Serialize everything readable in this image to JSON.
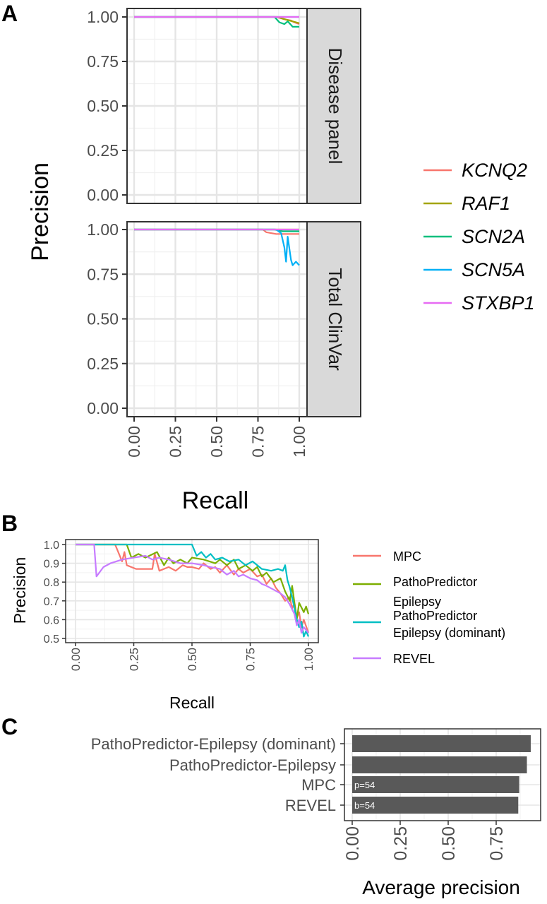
{
  "panel_labels": {
    "a": "A",
    "b": "B",
    "c": "C"
  },
  "chart_data": [
    {
      "panel": "A",
      "type": "line",
      "xlabel": "Recall",
      "ylabel": "Precision",
      "xlim": [
        0,
        1
      ],
      "ylim": [
        0,
        1
      ],
      "x_ticks": [
        "0.00",
        "0.25",
        "0.50",
        "0.75",
        "1.00"
      ],
      "y_ticks": [
        "0.00",
        "0.25",
        "0.50",
        "0.75",
        "1.00"
      ],
      "grid": true,
      "legend_position": "right",
      "colors": {
        "KCNQ2": "#F8766D",
        "RAF1": "#A3A500",
        "SCN2A": "#00BF7D",
        "SCN5A": "#00B0F6",
        "STXBP1": "#E76BF3"
      },
      "facets": [
        {
          "label": "Disease panel",
          "series": [
            {
              "name": "KCNQ2",
              "x": [
                0,
                0.86,
                0.9,
                0.92,
                0.95,
                0.97,
                1.0
              ],
              "y": [
                1.0,
                1.0,
                0.99,
                0.985,
                0.98,
                0.97,
                0.96
              ]
            },
            {
              "name": "RAF1",
              "x": [
                0,
                0.87,
                0.9,
                0.94,
                0.98,
                1.0
              ],
              "y": [
                1.0,
                1.0,
                0.99,
                0.98,
                0.97,
                0.965
              ]
            },
            {
              "name": "SCN2A",
              "x": [
                0,
                0.85,
                0.88,
                0.91,
                0.93,
                0.95,
                0.96,
                1.0
              ],
              "y": [
                1.0,
                1.0,
                0.97,
                0.96,
                0.975,
                0.955,
                0.945,
                0.945
              ]
            },
            {
              "name": "SCN5A",
              "x": [
                0,
                1.0
              ],
              "y": [
                1.0,
                1.0
              ]
            },
            {
              "name": "STXBP1",
              "x": [
                0,
                1.0
              ],
              "y": [
                1.0,
                1.0
              ]
            }
          ]
        },
        {
          "label": "Total ClinVar",
          "series": [
            {
              "name": "KCNQ2",
              "x": [
                0,
                0.78,
                0.8,
                0.83,
                0.86,
                0.9,
                1.0
              ],
              "y": [
                1.0,
                1.0,
                0.985,
                0.98,
                0.975,
                0.975,
                0.975
              ]
            },
            {
              "name": "RAF1",
              "x": [
                0,
                1.0
              ],
              "y": [
                1.0,
                1.0
              ]
            },
            {
              "name": "SCN2A",
              "x": [
                0,
                0.85,
                0.9,
                1.0
              ],
              "y": [
                1.0,
                1.0,
                0.99,
                0.99
              ]
            },
            {
              "name": "SCN5A",
              "x": [
                0,
                0.86,
                0.89,
                0.91,
                0.92,
                0.93,
                0.95,
                0.96,
                0.98,
                1.0
              ],
              "y": [
                1.0,
                1.0,
                0.98,
                0.9,
                0.82,
                0.96,
                0.83,
                0.8,
                0.82,
                0.8
              ]
            },
            {
              "name": "STXBP1",
              "x": [
                0,
                1.0
              ],
              "y": [
                1.0,
                1.0
              ]
            }
          ]
        }
      ]
    },
    {
      "panel": "B",
      "type": "line",
      "xlabel": "Recall",
      "ylabel": "Precision",
      "xlim": [
        0,
        1
      ],
      "ylim": [
        0.5,
        1.0
      ],
      "x_ticks": [
        "0.00",
        "0.25",
        "0.50",
        "0.75",
        "1.00"
      ],
      "y_ticks": [
        "0.5",
        "0.6",
        "0.7",
        "0.8",
        "0.9",
        "1.0"
      ],
      "grid": true,
      "legend_position": "right",
      "series": [
        {
          "name": "MPC",
          "legend_lines": [
            "MPC"
          ],
          "color": "#F8766D",
          "x": [
            0,
            0.17,
            0.2,
            0.21,
            0.22,
            0.26,
            0.3,
            0.33,
            0.34,
            0.36,
            0.4,
            0.43,
            0.46,
            0.48,
            0.5,
            0.53,
            0.55,
            0.58,
            0.6,
            0.62,
            0.65,
            0.68,
            0.7,
            0.72,
            0.75,
            0.78,
            0.8,
            0.82,
            0.84,
            0.86,
            0.88,
            0.9,
            0.92,
            0.93,
            0.94,
            0.95,
            0.96,
            0.97,
            0.98,
            1.0
          ],
          "y": [
            1.0,
            1.0,
            0.91,
            0.96,
            0.89,
            0.87,
            0.87,
            0.87,
            0.95,
            0.86,
            0.88,
            0.86,
            0.89,
            0.88,
            0.88,
            0.87,
            0.9,
            0.87,
            0.88,
            0.85,
            0.89,
            0.84,
            0.87,
            0.85,
            0.87,
            0.83,
            0.84,
            0.79,
            0.82,
            0.77,
            0.74,
            0.7,
            0.72,
            0.66,
            0.69,
            0.61,
            0.64,
            0.56,
            0.6,
            0.53
          ]
        },
        {
          "name": "PathoPredictor Epilepsy",
          "legend_lines": [
            "PathoPredictor",
            "Epilepsy"
          ],
          "color": "#7CAE00",
          "x": [
            0,
            0.22,
            0.24,
            0.27,
            0.3,
            0.35,
            0.38,
            0.4,
            0.42,
            0.45,
            0.48,
            0.5,
            0.55,
            0.6,
            0.62,
            0.65,
            0.68,
            0.7,
            0.73,
            0.76,
            0.78,
            0.8,
            0.82,
            0.85,
            0.88,
            0.9,
            0.92,
            0.93,
            0.95,
            0.96,
            0.98,
            0.99,
            1.0
          ],
          "y": [
            1.0,
            1.0,
            0.93,
            0.95,
            0.93,
            0.96,
            0.89,
            0.93,
            0.9,
            0.92,
            0.9,
            0.93,
            0.92,
            0.9,
            0.92,
            0.89,
            0.92,
            0.87,
            0.89,
            0.86,
            0.88,
            0.83,
            0.85,
            0.8,
            0.82,
            0.75,
            0.7,
            0.78,
            0.6,
            0.69,
            0.64,
            0.67,
            0.63
          ]
        },
        {
          "name": "PathoPredictor Epilepsy (dominant)",
          "legend_lines": [
            "PathoPredictor",
            "Epilepsy (dominant)"
          ],
          "color": "#00BFC4",
          "x": [
            0,
            0.5,
            0.52,
            0.54,
            0.56,
            0.58,
            0.6,
            0.63,
            0.66,
            0.7,
            0.73,
            0.76,
            0.8,
            0.84,
            0.87,
            0.89,
            0.9,
            0.91,
            0.92,
            0.93,
            0.94,
            0.95,
            0.96,
            0.97,
            0.98,
            0.99,
            1.0
          ],
          "y": [
            1.0,
            1.0,
            0.94,
            0.96,
            0.93,
            0.95,
            0.92,
            0.93,
            0.91,
            0.92,
            0.89,
            0.91,
            0.87,
            0.86,
            0.87,
            0.86,
            0.89,
            0.81,
            0.77,
            0.72,
            0.66,
            0.6,
            0.56,
            0.59,
            0.51,
            0.54,
            0.51
          ]
        },
        {
          "name": "REVEL",
          "legend_lines": [
            "REVEL"
          ],
          "color": "#C77CFF",
          "x": [
            0,
            0.08,
            0.09,
            0.12,
            0.15,
            0.2,
            0.25,
            0.3,
            0.33,
            0.36,
            0.4,
            0.45,
            0.5,
            0.55,
            0.58,
            0.62,
            0.65,
            0.68,
            0.7,
            0.72,
            0.75,
            0.78,
            0.8,
            0.82,
            0.85,
            0.88,
            0.9,
            0.92,
            0.94,
            0.95,
            0.96,
            0.97,
            0.98,
            1.0
          ],
          "y": [
            1.0,
            1.0,
            0.83,
            0.88,
            0.9,
            0.92,
            0.93,
            0.94,
            0.92,
            0.93,
            0.92,
            0.9,
            0.9,
            0.89,
            0.88,
            0.87,
            0.84,
            0.86,
            0.83,
            0.84,
            0.82,
            0.81,
            0.79,
            0.78,
            0.76,
            0.74,
            0.72,
            0.68,
            0.63,
            0.57,
            0.6,
            0.53,
            0.56,
            0.53
          ]
        }
      ]
    },
    {
      "panel": "C",
      "type": "bar",
      "orientation": "horizontal",
      "xlabel": "Average precision",
      "ylabel": "",
      "xlim": [
        0,
        1
      ],
      "x_ticks": [
        "0.00",
        "0.25",
        "0.50",
        "0.75"
      ],
      "bar_color": "#595959",
      "categories": [
        "PathoPredictor-Epilepsy (dominant)",
        "PathoPredictor-Epilepsy",
        "MPC",
        "REVEL"
      ],
      "values": [
        0.93,
        0.91,
        0.87,
        0.865
      ],
      "bar_labels": [
        "",
        "",
        "p=54",
        "b=54"
      ]
    }
  ]
}
